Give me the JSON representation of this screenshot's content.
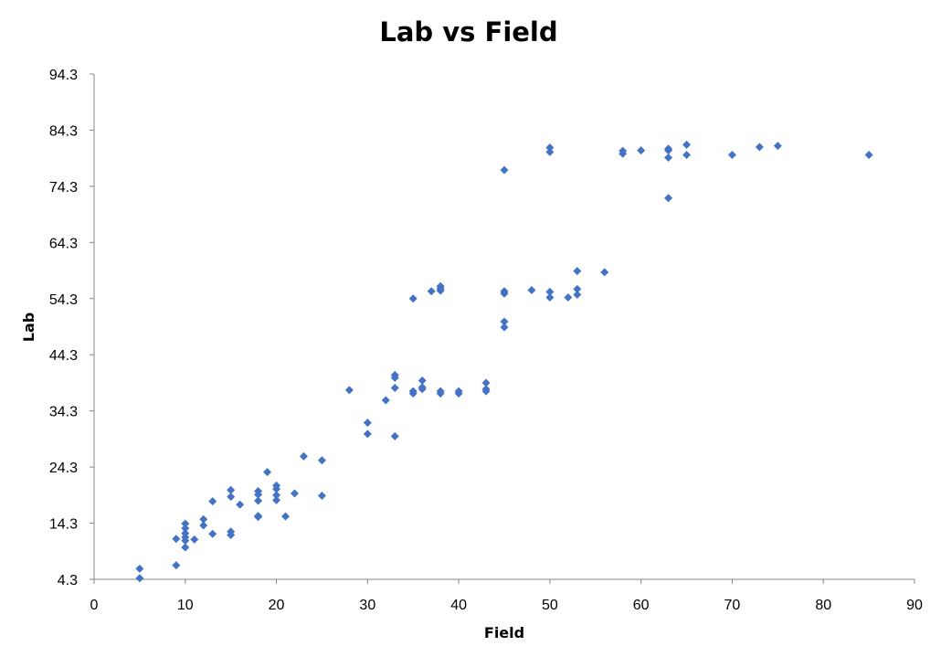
{
  "chart_data": {
    "type": "scatter",
    "title": "Lab vs Field",
    "xlabel": "Field",
    "ylabel": "Lab",
    "xlim": [
      0,
      90
    ],
    "ylim": [
      4.3,
      94.3
    ],
    "x_ticks": [
      "0",
      "10",
      "20",
      "30",
      "40",
      "50",
      "60",
      "70",
      "80",
      "90"
    ],
    "y_ticks": [
      "4.3",
      "14.3",
      "24.3",
      "34.3",
      "44.3",
      "54.3",
      "64.3",
      "74.3",
      "84.3",
      "94.3"
    ],
    "grid": false,
    "marker_color": "#4472C4",
    "points": [
      [
        5,
        6.2
      ],
      [
        5,
        4.5
      ],
      [
        9,
        6.8
      ],
      [
        9,
        11.5
      ],
      [
        10,
        14.2
      ],
      [
        10,
        13.4
      ],
      [
        10,
        12.5
      ],
      [
        10,
        11.8
      ],
      [
        10,
        11.2
      ],
      [
        10,
        10.0
      ],
      [
        11,
        11.4
      ],
      [
        12,
        15.0
      ],
      [
        12,
        13.9
      ],
      [
        13,
        18.2
      ],
      [
        13,
        12.4
      ],
      [
        15,
        20.2
      ],
      [
        15,
        19.0
      ],
      [
        15,
        12.8
      ],
      [
        15,
        12.2
      ],
      [
        16,
        17.6
      ],
      [
        18,
        20.0
      ],
      [
        18,
        19.4
      ],
      [
        18,
        18.3
      ],
      [
        18,
        15.6
      ],
      [
        18,
        15.4
      ],
      [
        19,
        23.4
      ],
      [
        20,
        21.0
      ],
      [
        20,
        20.4
      ],
      [
        20,
        19.3
      ],
      [
        20,
        18.4
      ],
      [
        21,
        15.5
      ],
      [
        22,
        19.6
      ],
      [
        23,
        26.2
      ],
      [
        25,
        25.5
      ],
      [
        25,
        19.2
      ],
      [
        28,
        38.0
      ],
      [
        30,
        32.2
      ],
      [
        30,
        30.2
      ],
      [
        32,
        36.2
      ],
      [
        33,
        40.7
      ],
      [
        33,
        40.2
      ],
      [
        33,
        38.4
      ],
      [
        33,
        29.8
      ],
      [
        35,
        54.3
      ],
      [
        35,
        37.8
      ],
      [
        35,
        37.4
      ],
      [
        36,
        39.7
      ],
      [
        36,
        38.5
      ],
      [
        36,
        38.2
      ],
      [
        37,
        55.6
      ],
      [
        38,
        56.5
      ],
      [
        38,
        56.1
      ],
      [
        38,
        55.7
      ],
      [
        38,
        37.8
      ],
      [
        38,
        37.4
      ],
      [
        40,
        37.8
      ],
      [
        40,
        37.4
      ],
      [
        43,
        39.3
      ],
      [
        43,
        38.2
      ],
      [
        43,
        37.8
      ],
      [
        45,
        77.2
      ],
      [
        45,
        55.6
      ],
      [
        45,
        55.2
      ],
      [
        45,
        50.2
      ],
      [
        45,
        49.2
      ],
      [
        48,
        55.8
      ],
      [
        50,
        81.2
      ],
      [
        50,
        80.4
      ],
      [
        50,
        55.5
      ],
      [
        50,
        54.5
      ],
      [
        52,
        54.5
      ],
      [
        53,
        59.2
      ],
      [
        53,
        56.0
      ],
      [
        53,
        55.0
      ],
      [
        56,
        59.0
      ],
      [
        58,
        80.6
      ],
      [
        58,
        80.1
      ],
      [
        60,
        80.7
      ],
      [
        63,
        81.0
      ],
      [
        63,
        80.7
      ],
      [
        63,
        79.4
      ],
      [
        63,
        72.2
      ],
      [
        65,
        81.7
      ],
      [
        65,
        79.9
      ],
      [
        70,
        79.9
      ],
      [
        73,
        81.3
      ],
      [
        75,
        81.5
      ],
      [
        85,
        79.9
      ]
    ]
  }
}
